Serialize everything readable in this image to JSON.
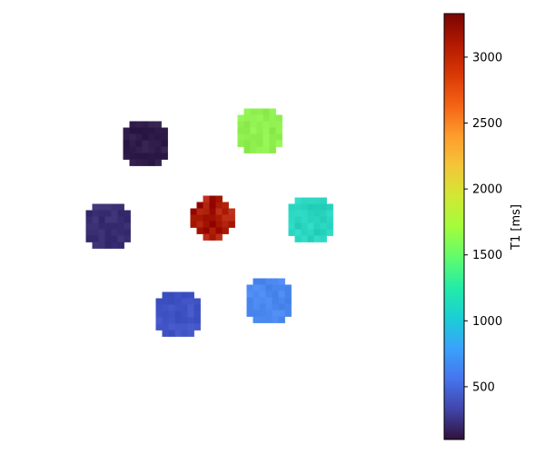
{
  "chart_data": {
    "type": "heatmap",
    "description_of_marks": "phantom vials",
    "colormap": "turbo",
    "colorbar": {
      "label": "T1 [ms]",
      "vmin": 100,
      "vmax": 3330,
      "ticks": [
        500,
        1000,
        1500,
        2000,
        2500,
        3000
      ],
      "tick_labels": [
        "500",
        "1000",
        "1500",
        "2000",
        "2500",
        "3000"
      ]
    },
    "grid": "off",
    "axes": "off",
    "legend": "colorbar at right",
    "vials": [
      {
        "id": "top-left",
        "t1_ms": 170,
        "color": "#2f1c4a"
      },
      {
        "id": "top-right",
        "t1_ms": 1640,
        "color": "#8ff04f"
      },
      {
        "id": "middle-left",
        "t1_ms": 270,
        "color": "#3a2f72"
      },
      {
        "id": "center",
        "t1_ms": 3150,
        "color": "#a81a04"
      },
      {
        "id": "middle-right",
        "t1_ms": 1150,
        "color": "#2ad5c0"
      },
      {
        "id": "bottom-left",
        "t1_ms": 450,
        "color": "#4154c5"
      },
      {
        "id": "bottom-right",
        "t1_ms": 700,
        "color": "#4a88f0"
      }
    ]
  }
}
